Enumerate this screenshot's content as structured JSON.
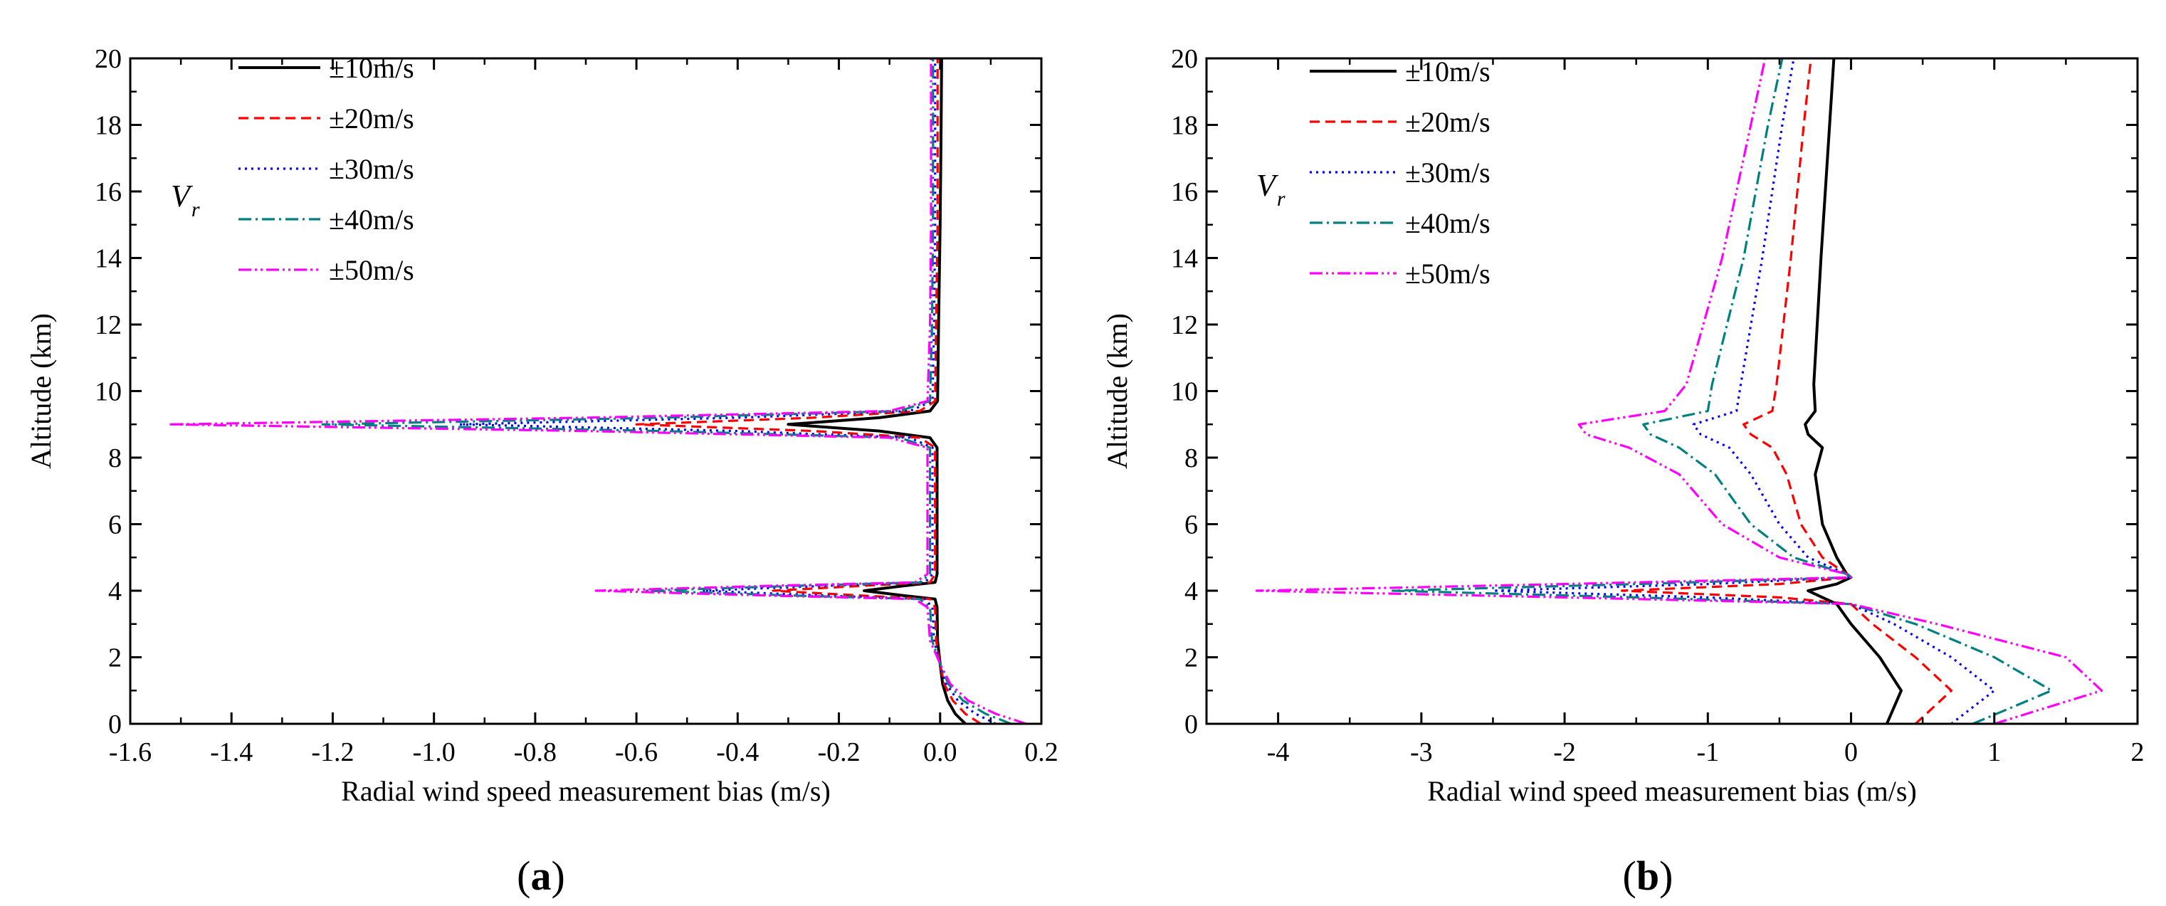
{
  "chart_data": [
    {
      "type": "line",
      "panel_label_open": "(",
      "panel_label_letter": "a",
      "panel_label_close": ")",
      "xlabel": "Radial wind speed measurement bias (m/s)",
      "ylabel": "Altitude (km)",
      "xlim": [
        -1.6,
        0.2
      ],
      "ylim": [
        0,
        20
      ],
      "xticks": [
        -1.6,
        -1.4,
        -1.2,
        -1.0,
        -0.8,
        -0.6,
        -0.4,
        -0.2,
        0.0,
        0.2
      ],
      "xtick_labels": [
        "-1.6",
        "-1.4",
        "-1.2",
        "-1.0",
        "-0.8",
        "-0.6",
        "-0.4",
        "-0.2",
        "0.0",
        "0.2"
      ],
      "yticks": [
        0,
        2,
        4,
        6,
        8,
        10,
        12,
        14,
        16,
        18,
        20
      ],
      "ytick_labels": [
        "0",
        "2",
        "4",
        "6",
        "8",
        "10",
        "12",
        "14",
        "16",
        "18",
        "20"
      ],
      "legend_symbol": "V",
      "legend_symbol_sub": "r",
      "series": [
        {
          "name": "±10m/s",
          "color": "#000000",
          "dash": "solid",
          "points": [
            [
              0.05,
              0
            ],
            [
              0.03,
              0.3
            ],
            [
              0.015,
              0.7
            ],
            [
              0.005,
              1.2
            ],
            [
              0,
              1.8
            ],
            [
              -0.005,
              2.5
            ],
            [
              -0.006,
              3.5
            ],
            [
              -0.01,
              3.75
            ],
            [
              -0.07,
              3.85
            ],
            [
              -0.15,
              4.0
            ],
            [
              -0.07,
              4.15
            ],
            [
              -0.01,
              4.25
            ],
            [
              -0.006,
              4.5
            ],
            [
              -0.006,
              8.3
            ],
            [
              -0.02,
              8.6
            ],
            [
              -0.12,
              8.8
            ],
            [
              -0.3,
              9.0
            ],
            [
              -0.12,
              9.2
            ],
            [
              -0.02,
              9.4
            ],
            [
              -0.005,
              9.7
            ],
            [
              -0.003,
              12
            ],
            [
              0,
              15
            ],
            [
              0.002,
              18
            ],
            [
              0.003,
              20
            ]
          ]
        },
        {
          "name": "±20m/s",
          "color": "#ff0000",
          "dash": "dashed",
          "points": [
            [
              0.08,
              0
            ],
            [
              0.05,
              0.3
            ],
            [
              0.025,
              0.7
            ],
            [
              0.008,
              1.2
            ],
            [
              0,
              1.8
            ],
            [
              -0.008,
              2.5
            ],
            [
              -0.01,
              3.5
            ],
            [
              -0.02,
              3.75
            ],
            [
              -0.15,
              3.85
            ],
            [
              -0.33,
              4.0
            ],
            [
              -0.15,
              4.15
            ],
            [
              -0.02,
              4.25
            ],
            [
              -0.01,
              4.5
            ],
            [
              -0.01,
              8.3
            ],
            [
              -0.04,
              8.6
            ],
            [
              -0.25,
              8.8
            ],
            [
              -0.6,
              9.0
            ],
            [
              -0.25,
              9.2
            ],
            [
              -0.04,
              9.4
            ],
            [
              -0.01,
              9.7
            ],
            [
              -0.008,
              12
            ],
            [
              -0.005,
              15
            ],
            [
              -0.005,
              18
            ],
            [
              -0.005,
              20
            ]
          ]
        },
        {
          "name": "±30m/s",
          "color": "#0000ff",
          "dash": "dotted",
          "points": [
            [
              0.11,
              0
            ],
            [
              0.07,
              0.3
            ],
            [
              0.035,
              0.7
            ],
            [
              0.012,
              1.2
            ],
            [
              0,
              1.8
            ],
            [
              -0.012,
              2.5
            ],
            [
              -0.015,
              3.5
            ],
            [
              -0.03,
              3.75
            ],
            [
              -0.22,
              3.85
            ],
            [
              -0.47,
              4.0
            ],
            [
              -0.22,
              4.15
            ],
            [
              -0.03,
              4.25
            ],
            [
              -0.015,
              4.5
            ],
            [
              -0.015,
              8.3
            ],
            [
              -0.06,
              8.6
            ],
            [
              -0.4,
              8.8
            ],
            [
              -0.95,
              9.0
            ],
            [
              -0.4,
              9.2
            ],
            [
              -0.06,
              9.4
            ],
            [
              -0.015,
              9.7
            ],
            [
              -0.012,
              12
            ],
            [
              -0.01,
              15
            ],
            [
              -0.01,
              18
            ],
            [
              -0.01,
              20
            ]
          ]
        },
        {
          "name": "±40m/s",
          "color": "#008080",
          "dash": "dashdot",
          "points": [
            [
              0.14,
              0
            ],
            [
              0.09,
              0.3
            ],
            [
              0.045,
              0.7
            ],
            [
              0.016,
              1.2
            ],
            [
              0,
              1.8
            ],
            [
              -0.016,
              2.5
            ],
            [
              -0.02,
              3.5
            ],
            [
              -0.04,
              3.75
            ],
            [
              -0.28,
              3.85
            ],
            [
              -0.58,
              4.0
            ],
            [
              -0.28,
              4.15
            ],
            [
              -0.04,
              4.25
            ],
            [
              -0.02,
              4.5
            ],
            [
              -0.02,
              8.3
            ],
            [
              -0.08,
              8.6
            ],
            [
              -0.55,
              8.8
            ],
            [
              -1.22,
              9.0
            ],
            [
              -0.55,
              9.2
            ],
            [
              -0.08,
              9.4
            ],
            [
              -0.02,
              9.7
            ],
            [
              -0.016,
              12
            ],
            [
              -0.014,
              15
            ],
            [
              -0.014,
              18
            ],
            [
              -0.014,
              20
            ]
          ]
        },
        {
          "name": "±50m/s",
          "color": "#ff00ff",
          "dash": "dashdotdot",
          "points": [
            [
              0.17,
              0
            ],
            [
              0.11,
              0.3
            ],
            [
              0.055,
              0.7
            ],
            [
              0.02,
              1.2
            ],
            [
              0,
              1.8
            ],
            [
              -0.02,
              2.5
            ],
            [
              -0.025,
              3.5
            ],
            [
              -0.05,
              3.75
            ],
            [
              -0.33,
              3.85
            ],
            [
              -0.68,
              4.0
            ],
            [
              -0.33,
              4.15
            ],
            [
              -0.05,
              4.25
            ],
            [
              -0.025,
              4.5
            ],
            [
              -0.025,
              8.3
            ],
            [
              -0.1,
              8.6
            ],
            [
              -0.7,
              8.8
            ],
            [
              -1.52,
              9.0
            ],
            [
              -0.7,
              9.2
            ],
            [
              -0.1,
              9.4
            ],
            [
              -0.025,
              9.7
            ],
            [
              -0.02,
              12
            ],
            [
              -0.018,
              15
            ],
            [
              -0.018,
              18
            ],
            [
              -0.018,
              20
            ]
          ]
        }
      ]
    },
    {
      "type": "line",
      "panel_label_open": "(",
      "panel_label_letter": "b",
      "panel_label_close": ")",
      "xlabel": "Radial wind speed measurement bias (m/s)",
      "ylabel": "Altitude (km)",
      "xlim": [
        -4.5,
        2
      ],
      "ylim": [
        0,
        20
      ],
      "xticks": [
        -4,
        -3,
        -2,
        -1,
        0,
        1,
        2
      ],
      "xtick_labels": [
        "-4",
        "-3",
        "-2",
        "-1",
        "0",
        "1",
        "2"
      ],
      "yticks": [
        0,
        2,
        4,
        6,
        8,
        10,
        12,
        14,
        16,
        18,
        20
      ],
      "ytick_labels": [
        "0",
        "2",
        "4",
        "6",
        "8",
        "10",
        "12",
        "14",
        "16",
        "18",
        "20"
      ],
      "legend_symbol": "V",
      "legend_symbol_sub": "r",
      "series": [
        {
          "name": "±10m/s",
          "color": "#000000",
          "dash": "solid",
          "points": [
            [
              0.25,
              0
            ],
            [
              0.35,
              1.0
            ],
            [
              0.2,
              2.0
            ],
            [
              0,
              3.0
            ],
            [
              -0.1,
              3.6
            ],
            [
              -0.2,
              3.8
            ],
            [
              -0.3,
              4.0
            ],
            [
              -0.1,
              4.2
            ],
            [
              0,
              4.4
            ],
            [
              -0.03,
              4.5
            ],
            [
              -0.1,
              5.0
            ],
            [
              -0.2,
              6.0
            ],
            [
              -0.25,
              7.5
            ],
            [
              -0.2,
              8.3
            ],
            [
              -0.3,
              8.7
            ],
            [
              -0.32,
              9.0
            ],
            [
              -0.25,
              9.4
            ],
            [
              -0.26,
              10.2
            ],
            [
              -0.21,
              14
            ],
            [
              -0.15,
              18
            ],
            [
              -0.12,
              20
            ]
          ]
        },
        {
          "name": "±20m/s",
          "color": "#ff0000",
          "dash": "dashed",
          "points": [
            [
              0.45,
              0
            ],
            [
              0.7,
              1.0
            ],
            [
              0.45,
              2.0
            ],
            [
              0.15,
              3.0
            ],
            [
              0,
              3.6
            ],
            [
              -0.5,
              3.8
            ],
            [
              -1.6,
              4.0
            ],
            [
              -0.5,
              4.2
            ],
            [
              0,
              4.4
            ],
            [
              -0.03,
              4.5
            ],
            [
              -0.2,
              5.0
            ],
            [
              -0.35,
              6.0
            ],
            [
              -0.45,
              7.5
            ],
            [
              -0.55,
              8.3
            ],
            [
              -0.7,
              8.7
            ],
            [
              -0.75,
              9.0
            ],
            [
              -0.55,
              9.4
            ],
            [
              -0.52,
              10.2
            ],
            [
              -0.42,
              14
            ],
            [
              -0.33,
              18
            ],
            [
              -0.28,
              20
            ]
          ]
        },
        {
          "name": "±30m/s",
          "color": "#0000ff",
          "dash": "dotted",
          "points": [
            [
              0.7,
              0
            ],
            [
              1.0,
              1.0
            ],
            [
              0.7,
              2.0
            ],
            [
              0.3,
              3.0
            ],
            [
              0,
              3.6
            ],
            [
              -1.0,
              3.8
            ],
            [
              -2.5,
              4.0
            ],
            [
              -1.0,
              4.2
            ],
            [
              0,
              4.4
            ],
            [
              -0.03,
              4.5
            ],
            [
              -0.3,
              5.0
            ],
            [
              -0.5,
              6.0
            ],
            [
              -0.7,
              7.5
            ],
            [
              -0.85,
              8.3
            ],
            [
              -1.05,
              8.7
            ],
            [
              -1.1,
              9.0
            ],
            [
              -0.8,
              9.4
            ],
            [
              -0.77,
              10.2
            ],
            [
              -0.62,
              14
            ],
            [
              -0.48,
              18
            ],
            [
              -0.4,
              20
            ]
          ]
        },
        {
          "name": "±40m/s",
          "color": "#008080",
          "dash": "dashdot",
          "points": [
            [
              0.85,
              0
            ],
            [
              1.4,
              1.0
            ],
            [
              1.0,
              2.0
            ],
            [
              0.45,
              3.0
            ],
            [
              0,
              3.6
            ],
            [
              -1.5,
              3.8
            ],
            [
              -3.2,
              4.0
            ],
            [
              -1.5,
              4.2
            ],
            [
              0,
              4.4
            ],
            [
              -0.03,
              4.5
            ],
            [
              -0.4,
              5.0
            ],
            [
              -0.7,
              6.0
            ],
            [
              -0.95,
              7.5
            ],
            [
              -1.2,
              8.3
            ],
            [
              -1.4,
              8.7
            ],
            [
              -1.45,
              9.0
            ],
            [
              -1.0,
              9.4
            ],
            [
              -0.97,
              10.2
            ],
            [
              -0.75,
              14
            ],
            [
              -0.58,
              18
            ],
            [
              -0.48,
              20
            ]
          ]
        },
        {
          "name": "±50m/s",
          "color": "#ff00ff",
          "dash": "dashdotdot",
          "points": [
            [
              1.0,
              0
            ],
            [
              1.75,
              1.0
            ],
            [
              1.5,
              2.0
            ],
            [
              0.6,
              3.0
            ],
            [
              0,
              3.6
            ],
            [
              -2.0,
              3.8
            ],
            [
              -4.15,
              4.0
            ],
            [
              -2.0,
              4.2
            ],
            [
              0,
              4.4
            ],
            [
              -0.03,
              4.5
            ],
            [
              -0.5,
              5.0
            ],
            [
              -0.9,
              6.0
            ],
            [
              -1.2,
              7.5
            ],
            [
              -1.55,
              8.3
            ],
            [
              -1.85,
              8.7
            ],
            [
              -1.9,
              9.0
            ],
            [
              -1.3,
              9.4
            ],
            [
              -1.15,
              10.2
            ],
            [
              -0.9,
              14
            ],
            [
              -0.7,
              18
            ],
            [
              -0.6,
              20
            ]
          ]
        }
      ]
    }
  ]
}
